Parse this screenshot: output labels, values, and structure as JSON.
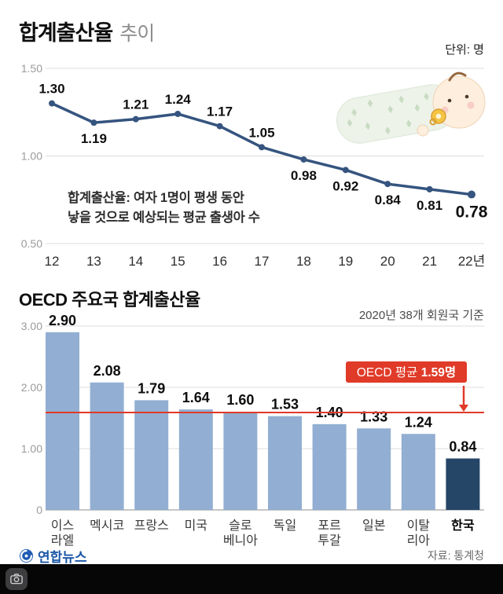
{
  "header": {
    "title_main": "합계출산율",
    "title_sub": "추이",
    "unit": "단위: 명"
  },
  "note": {
    "line1": "합계출산율: 여자 1명이 평생 동안",
    "line2": "낳을 것으로 예상되는 평균 출생아 수"
  },
  "section2": {
    "title": "OECD 주요국 합계출산율",
    "basis": "2020년 38개 회원국 기준"
  },
  "footer": {
    "brand": "연합뉴스",
    "source": "자료: 통계청"
  },
  "colors": {
    "line": "#35547f",
    "bar": "#92aed2",
    "bar_highlight": "#264668",
    "reference": "#e03a28",
    "grid": "#dcdcdc",
    "axis": "#9b9b9b",
    "brand_blue": "#1b57a8"
  },
  "chart_data": [
    {
      "type": "line",
      "title": "합계출산율 추이",
      "unit": "명",
      "x": [
        "12",
        "13",
        "14",
        "15",
        "16",
        "17",
        "18",
        "19",
        "20",
        "21",
        "22년"
      ],
      "values": [
        1.3,
        1.19,
        1.21,
        1.24,
        1.17,
        1.05,
        0.98,
        0.92,
        0.84,
        0.81,
        0.78
      ],
      "yticks": [
        {
          "v": 1.5,
          "label": "1.50"
        },
        {
          "v": 1.0,
          "label": "1.00"
        },
        {
          "v": 0.5,
          "label": "0.50"
        }
      ],
      "ylim": [
        0.5,
        1.5
      ],
      "grid": true,
      "legend": "none"
    },
    {
      "type": "bar",
      "title": "OECD 주요국 합계출산율",
      "basis": "2020년 38개 회원국 기준",
      "categories": [
        "이스라엘",
        "멕시코",
        "프랑스",
        "미국",
        "슬로베니아",
        "독일",
        "포르투갈",
        "일본",
        "이탈리아",
        "한국"
      ],
      "values": [
        2.9,
        2.08,
        1.79,
        1.64,
        1.6,
        1.53,
        1.4,
        1.33,
        1.24,
        0.84
      ],
      "yticks": [
        {
          "v": 3,
          "label": "3.00"
        },
        {
          "v": 2,
          "label": "2.00"
        },
        {
          "v": 1,
          "label": "1.00"
        },
        {
          "v": 0,
          "label": "0"
        }
      ],
      "ylim": [
        0,
        3.2
      ],
      "highlight_index": 9,
      "reference_line": {
        "value": 1.59,
        "label_prefix": "OECD 평균",
        "label_value": "1.59명"
      }
    }
  ]
}
